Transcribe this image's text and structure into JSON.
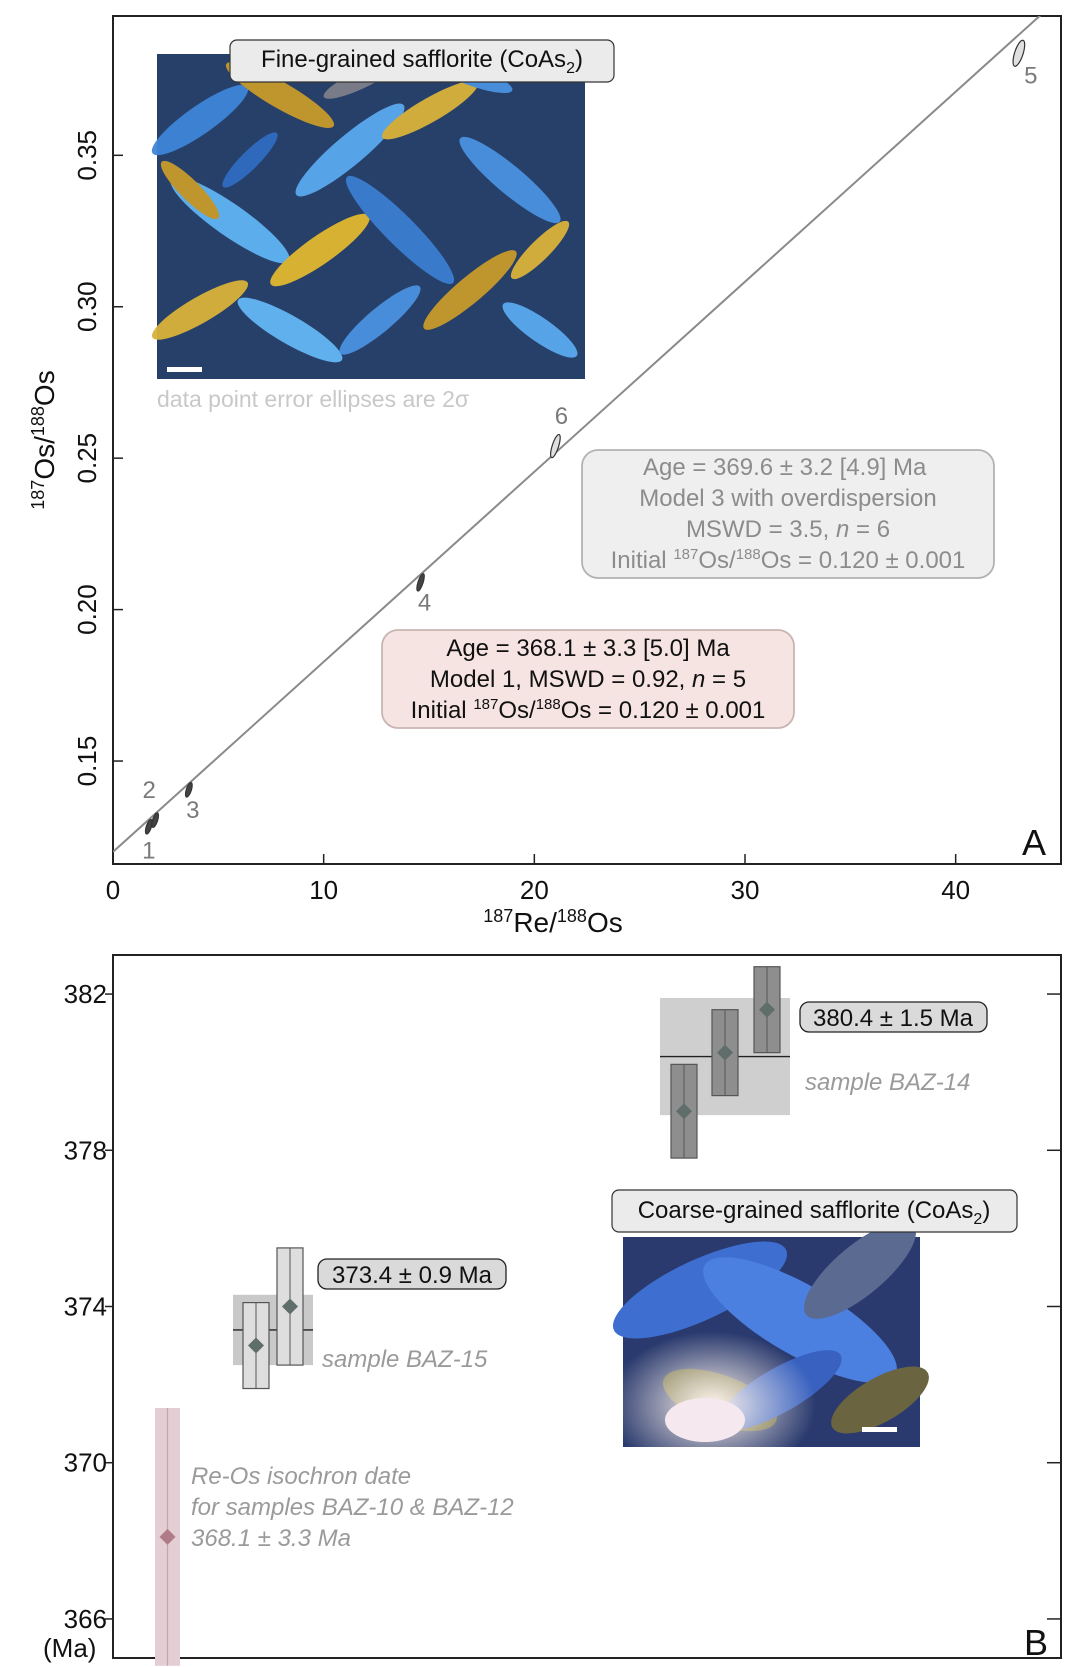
{
  "chart_data": [
    {
      "panel": "A",
      "type": "scatter",
      "xlabel_main": "Re/",
      "xlabel_sup1": "187",
      "xlabel_sup2": "188",
      "xlabel_tail": "Os",
      "ylabel_main": "Os/",
      "ylabel_sup1": "187",
      "ylabel_sup2": "188",
      "ylabel_tail": "Os",
      "xlim": [
        0,
        45
      ],
      "ylim": [
        0.116,
        0.396
      ],
      "xticks": [
        0,
        10,
        20,
        30,
        40
      ],
      "xtick_labels": [
        "0",
        "10",
        "20",
        "30",
        "40"
      ],
      "yticks": [
        0.15,
        0.2,
        0.25,
        0.3,
        0.35
      ],
      "ytick_labels": [
        "0.15",
        "0.20",
        "0.25",
        "0.30",
        "0.35"
      ],
      "isochron": {
        "intercept": 0.12,
        "slope": 0.006275
      },
      "points": [
        {
          "label": "1",
          "x": 1.7,
          "y": 0.1283,
          "ex": 0.08,
          "ey": 0.0025
        },
        {
          "label": "2",
          "x": 2.0,
          "y": 0.1305,
          "ex": 0.08,
          "ey": 0.0025
        },
        {
          "label": "3",
          "x": 3.6,
          "y": 0.1405,
          "ex": 0.08,
          "ey": 0.0025
        },
        {
          "label": "4",
          "x": 14.6,
          "y": 0.209,
          "ex": 0.1,
          "ey": 0.003
        },
        {
          "label": "5",
          "x": 43.0,
          "y": 0.3837,
          "ex": 0.2,
          "ey": 0.0045
        },
        {
          "label": "6",
          "x": 21.0,
          "y": 0.254,
          "ex": 0.15,
          "ey": 0.004
        }
      ],
      "annotation_error": "data point error ellipses are 2σ",
      "inset_title_pre": "Fine-grained safflorite (CoAs",
      "inset_title_sub": "2",
      "inset_title_post": ")",
      "box1": {
        "line1": "Age = 369.6 ± 3.2 [4.9] Ma",
        "line2": "Model 3 with overdispersion",
        "line3_pre": "MSWD = 3.5, ",
        "line3_n": "n",
        "line3_post": " = 6",
        "line4_pre": "Initial ",
        "line4_sup1": "187",
        "line4_mid": "Os/",
        "line4_sup2": "188",
        "line4_post": "Os = 0.120 ± 0.001"
      },
      "box2": {
        "line1": "Age = 368.1 ± 3.3 [5.0] Ma",
        "line2_pre": "Model 1, MSWD = 0.92, ",
        "line2_n": "n",
        "line2_post": " = 5",
        "line3_pre": "Initial ",
        "line3_sup1": "187",
        "line3_mid": "Os/",
        "line3_sup2": "188",
        "line3_post": "Os = 0.120 ± 0.001"
      },
      "panel_letter": "A",
      "colors": {
        "line": "#8a8a8a",
        "box1": "#efefef",
        "box2": "#f6e4e2"
      }
    },
    {
      "panel": "B",
      "type": "bar",
      "ylim": [
        365,
        383
      ],
      "yticks": [
        366,
        370,
        374,
        378,
        382
      ],
      "ytick_labels": [
        "366",
        "370",
        "374",
        "378",
        "382"
      ],
      "yunit": "(Ma)",
      "samples": [
        {
          "name": "sample BAZ-14",
          "mean": 380.4,
          "mean_err": 1.5,
          "mean_label": "380.4 ± 1.5 Ma",
          "points": [
            {
              "age": 379.0,
              "lo": 377.8,
              "hi": 380.2
            },
            {
              "age": 380.5,
              "lo": 379.4,
              "hi": 381.6
            },
            {
              "age": 381.6,
              "lo": 380.5,
              "hi": 382.7
            }
          ]
        },
        {
          "name": "sample BAZ-15",
          "mean": 373.4,
          "mean_err": 0.9,
          "mean_label": "373.4 ± 0.9 Ma",
          "points": [
            {
              "age": 373.0,
              "lo": 371.9,
              "hi": 374.1
            },
            {
              "age": 374.0,
              "lo": 372.5,
              "hi": 375.5
            }
          ]
        }
      ],
      "isochron_date": {
        "age": 368.1,
        "lo": 364.8,
        "hi": 371.4,
        "line1": "Re-Os isochron date",
        "line2": "for samples BAZ-10 & BAZ-12",
        "line3": "368.1 ± 3.3 Ma"
      },
      "inset_title_pre": "Coarse-grained safflorite (CoAs",
      "inset_title_sub": "2",
      "inset_title_post": ")",
      "panel_letter": "B",
      "colors": {
        "baz14": "#8e8e8e",
        "baz15": "#dedede",
        "band14": "#cfcfcf",
        "band15": "#c9c9c9",
        "iso": "#e3ced3",
        "diamond": "#5f6e6a",
        "iso_diamond": "#b07a88"
      }
    }
  ]
}
